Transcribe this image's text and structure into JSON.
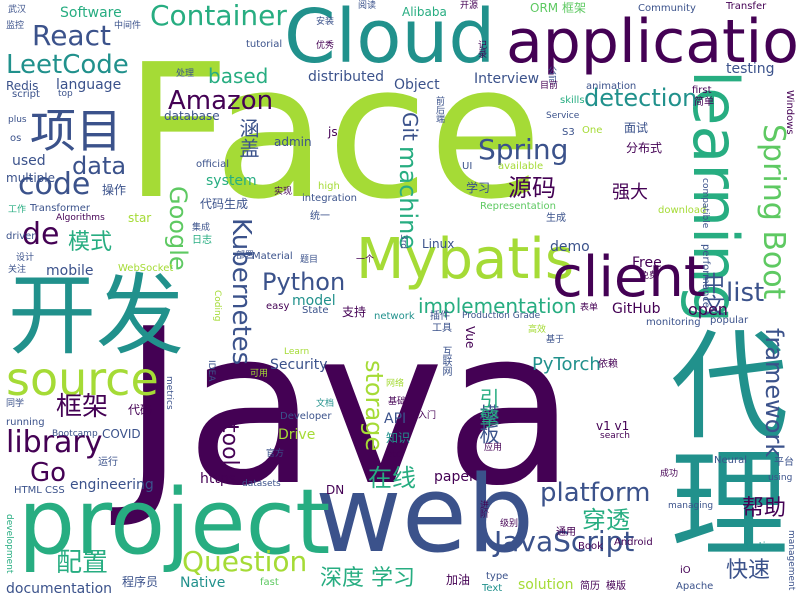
{
  "palette": {
    "c1": "#440154",
    "c2": "#3b528b",
    "c3": "#21918c",
    "c4": "#27ad81",
    "c5": "#5ec962",
    "c6": "#a5db36",
    "c7": "#fde725"
  },
  "words": [
    "Java",
    "Face",
    "web",
    "project",
    "代理",
    "开发",
    "application",
    "Cloud",
    "learning",
    "Mybatis",
    "client",
    "source",
    "项目",
    "Spring Boot",
    "Container",
    "React",
    "LeetCode",
    "Amazon",
    "Spring",
    "JavaScript",
    "platform",
    "Question",
    "Kubernetes",
    "Python",
    "library",
    "framework",
    "code",
    "data",
    "de",
    "storage",
    "detection",
    "machine",
    "Google",
    "源码",
    "模式",
    "框架",
    "在线",
    "穿透",
    "配置",
    "深度 学习",
    "快速",
    "帮助",
    "中文",
    "list",
    "open",
    "implementation",
    "tool",
    "PyTorch",
    "Security",
    "Git",
    "based",
    "Go",
    "Software",
    "documentation",
    "engineering",
    "model",
    "Native",
    "https",
    "mobile",
    "language",
    "system",
    "distributed",
    "Object",
    "Interview",
    "testing",
    "Drive",
    "API",
    "paper",
    "Free",
    "demo",
    "Linux",
    "GitHub",
    "used",
    "multiple",
    "Redis",
    "Alibaba",
    "ORM 框架",
    "Community",
    "Transfer",
    "Windows",
    "first",
    "animation",
    "skills",
    "S3",
    "One",
    "UI",
    "available",
    "Representation",
    "download",
    "compatible",
    "performance",
    "popular",
    "monitoring",
    "Production Grade",
    "network",
    "State",
    "easy",
    "Material",
    "WebSocket",
    "IDEA",
    "metrics",
    "Developer",
    "COVID",
    "Bootcamp",
    "running",
    "HTML CSS",
    "datasets",
    "DN",
    "etc",
    "v1 v1",
    "search",
    "Neural",
    "using",
    "managing",
    "Book",
    "Android",
    "iO",
    "Apache",
    "runtime",
    "management",
    "Text",
    "type",
    "solution",
    "fast",
    "Learn",
    "Coding",
    "development",
    "Transformer",
    "Algorithms",
    "driver",
    "star",
    "official",
    "high",
    "integration",
    "tutorial",
    "script",
    "top",
    "plus",
    "os",
    "admin",
    "js",
    "database",
    "Service",
    "3rd",
    "Vue",
    "强大",
    "面试",
    "分布式",
    "学习",
    "代码生成",
    "操作",
    "工作",
    "日志",
    "集成",
    "设计",
    "关注",
    "支持",
    "插件",
    "工具",
    "互联网",
    "依赖",
    "可用",
    "基础",
    "知识",
    "运行",
    "同学",
    "进阶",
    "级别",
    "通用",
    "应用",
    "平台",
    "简历",
    "模版",
    "加油",
    "程序员",
    "代码",
    "模板",
    "引擎",
    "涵盖",
    "统一",
    "题目",
    "一个",
    "网络",
    "文档",
    "免费",
    "简单",
    "生成",
    "处理",
    "中间件",
    "武汉",
    "监控",
    "安装",
    "阅读",
    "开源",
    "优秀",
    "记录",
    "前后端",
    "公司",
    "目前",
    "基于",
    "表单",
    "高效",
    "部署",
    "实现",
    "入门",
    "官方",
    "成功"
  ]
}
